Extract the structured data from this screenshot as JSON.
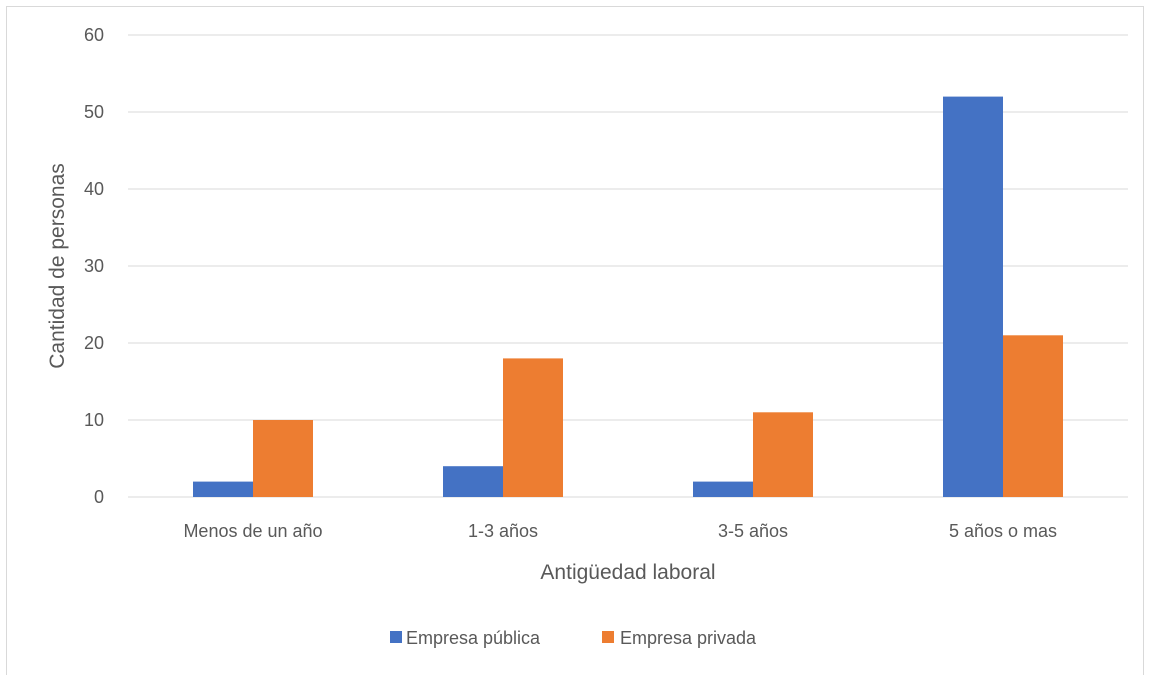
{
  "chart_data": {
    "type": "bar",
    "title": "",
    "xlabel": "Antigüedad laboral",
    "ylabel": "Cantidad de personas",
    "categories": [
      "Menos de un año",
      "1-3 años",
      "3-5 años",
      "5 años o mas"
    ],
    "series": [
      {
        "name": "Empresa pública",
        "values": [
          2,
          4,
          2,
          52
        ],
        "color": "#4472C4"
      },
      {
        "name": "Empresa privada",
        "values": [
          10,
          18,
          11,
          21
        ],
        "color": "#ED7D31"
      }
    ],
    "ylim": [
      0,
      60
    ],
    "yticks": [
      0,
      10,
      20,
      30,
      40,
      50,
      60
    ],
    "grid": true,
    "legend_position": "bottom"
  }
}
